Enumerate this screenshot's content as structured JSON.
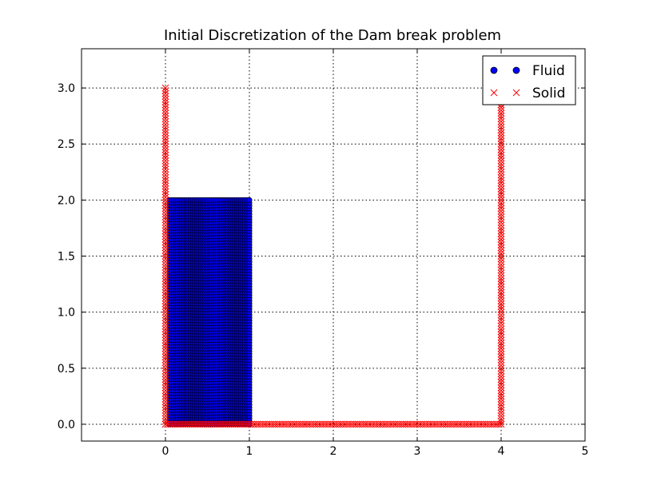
{
  "chart_data": {
    "type": "scatter",
    "title": "Initial Discretization of the Dam break problem",
    "xlabel": "",
    "ylabel": "",
    "xlim": [
      -1,
      5
    ],
    "ylim": [
      -0.15,
      3.35
    ],
    "xticks": [
      0,
      1,
      2,
      3,
      4,
      5
    ],
    "yticks": [
      0.0,
      0.5,
      1.0,
      1.5,
      2.0,
      2.5,
      3.0
    ],
    "xtick_labels": [
      "0",
      "1",
      "2",
      "3",
      "4",
      "5"
    ],
    "ytick_labels": [
      "0.0",
      "0.5",
      "1.0",
      "1.5",
      "2.0",
      "2.5",
      "3.0"
    ],
    "grid": true,
    "legend_position": "top-right",
    "series": [
      {
        "name": "Fluid",
        "marker": "circle",
        "color": "#0000ff",
        "edge_color": "#000000",
        "region": {
          "x": [
            0.05,
            1.0
          ],
          "y": [
            0.0,
            2.0
          ]
        },
        "spacing": 0.025
      },
      {
        "name": "Solid",
        "marker": "x",
        "color": "#ff0000",
        "walls": [
          {
            "x": [
              0.0,
              0.0
            ],
            "y": [
              0.0,
              3.0
            ]
          },
          {
            "x": [
              0.0,
              4.0
            ],
            "y": [
              0.0,
              0.0
            ]
          },
          {
            "x": [
              4.0,
              4.0
            ],
            "y": [
              0.0,
              3.0
            ]
          }
        ],
        "spacing": 0.025
      }
    ]
  }
}
